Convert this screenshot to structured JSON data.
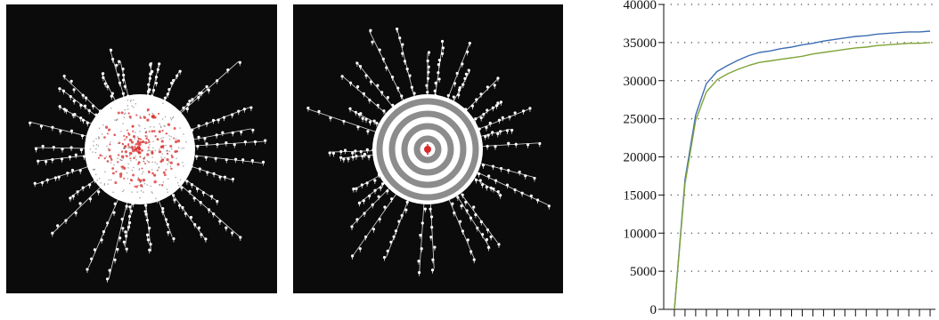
{
  "colors": {
    "panel_background": "#0b0b0b",
    "network_nodes": "#ffffff",
    "infected_nodes": "#d92b2b",
    "ring_gray": "#8c8c8c",
    "series_1": "#3e6db4",
    "series_2": "#7fa33a",
    "grid": "#444444"
  },
  "left_panel": {
    "kind": "radial-network-visualization",
    "highlight": "red nodes clustered at center"
  },
  "middle_panel": {
    "kind": "radial-network-visualization",
    "highlight": "concentric gray and white rings around a red center node"
  },
  "chart_data": {
    "type": "line",
    "title": "",
    "xlabel": "",
    "ylabel": "",
    "x": [
      1,
      2,
      3,
      4,
      5,
      6,
      7,
      8,
      9,
      10,
      11,
      12,
      13,
      14,
      15,
      16,
      17,
      18,
      19,
      20,
      21,
      22,
      23,
      24,
      25
    ],
    "xlim": [
      0,
      25.5
    ],
    "ylim": [
      0,
      40000
    ],
    "x_ticks": [
      1,
      6,
      11,
      16,
      21
    ],
    "y_ticks": [
      0,
      5000,
      10000,
      15000,
      20000,
      25000,
      30000,
      35000,
      40000
    ],
    "y_tick_labels": [
      "0",
      "5000",
      "10000",
      "15000",
      "20000",
      "25000",
      "30000",
      "35000",
      "40000"
    ],
    "grid": "horizontal dotted",
    "legend": "none",
    "series": [
      {
        "color": "#3e6db4",
        "values": [
          0,
          17000,
          25500,
          29600,
          31200,
          32000,
          32700,
          33300,
          33700,
          33900,
          34200,
          34400,
          34700,
          34900,
          35200,
          35400,
          35600,
          35800,
          35900,
          36100,
          36200,
          36300,
          36400,
          36400,
          36500
        ]
      },
      {
        "color": "#7fa33a",
        "values": [
          0,
          16500,
          24800,
          28500,
          30100,
          30900,
          31500,
          32000,
          32400,
          32600,
          32800,
          33000,
          33200,
          33500,
          33700,
          33900,
          34100,
          34300,
          34400,
          34600,
          34700,
          34800,
          34900,
          34900,
          35000
        ]
      }
    ]
  }
}
